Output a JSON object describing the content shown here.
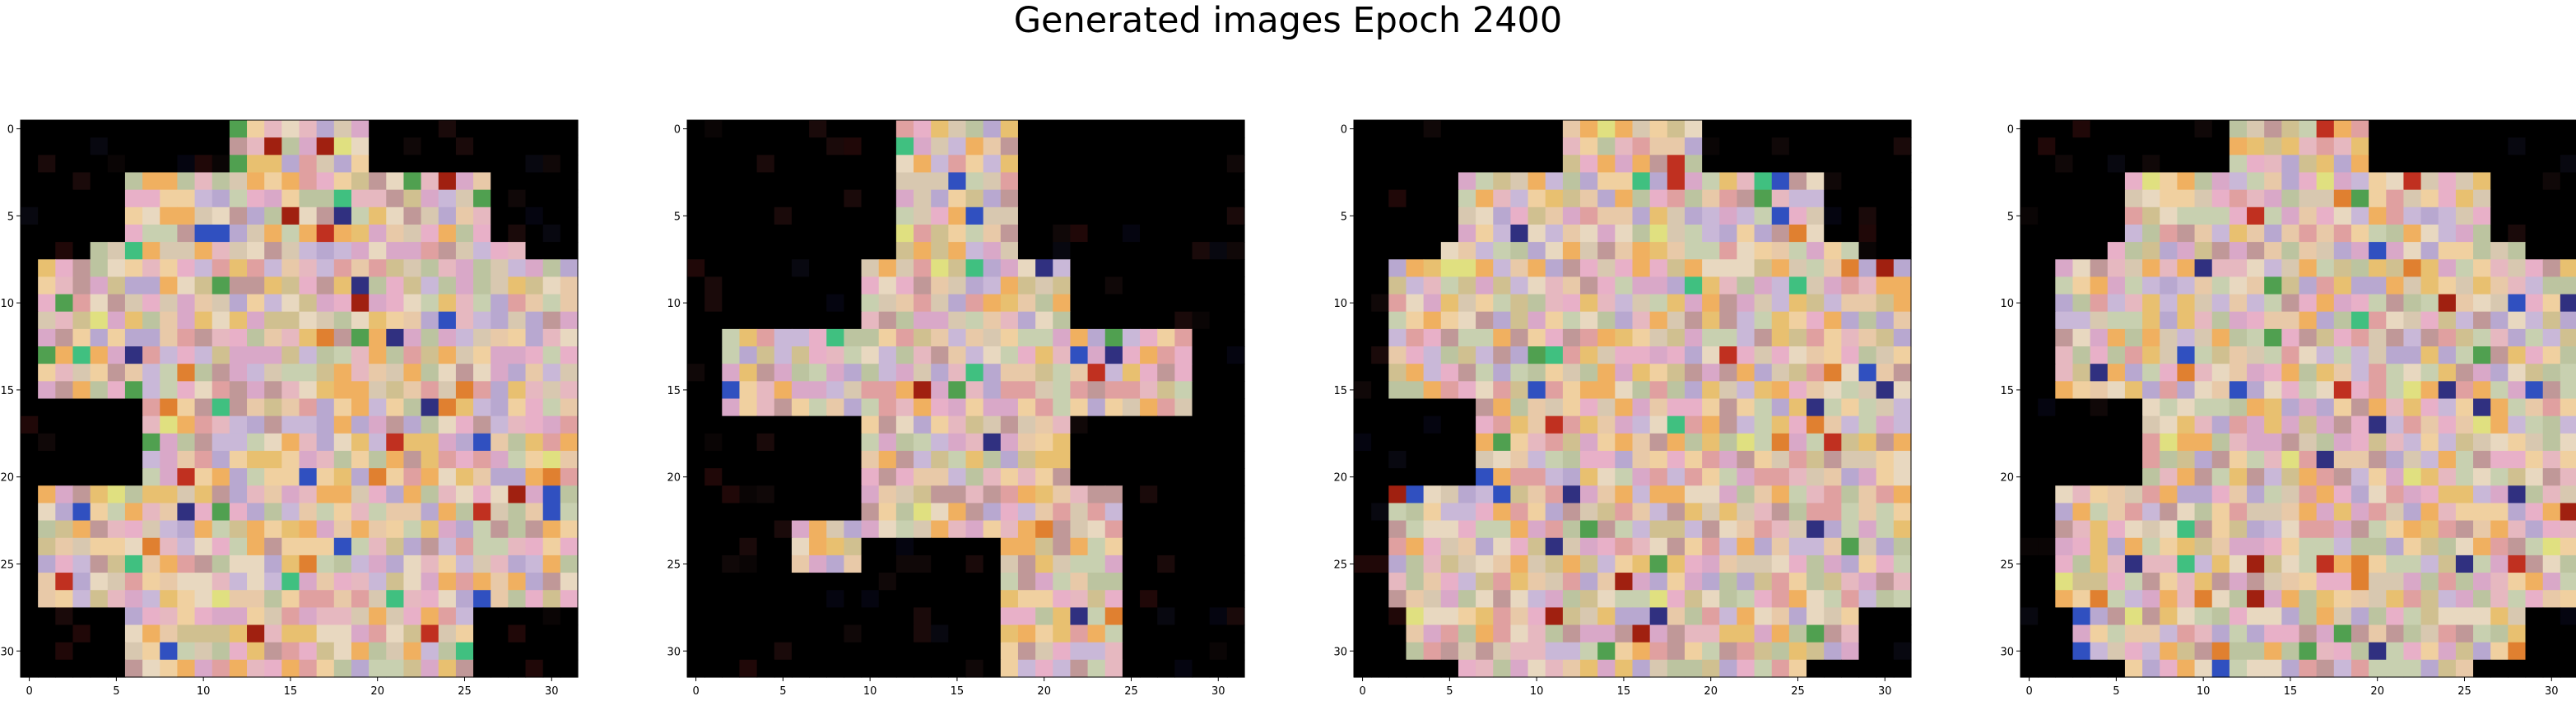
{
  "title": "Generated images Epoch 2400",
  "chart_data": [
    {
      "type": "heatmap",
      "image": "generated-sample-1",
      "grid_size": [
        32,
        32
      ],
      "xlim": [
        -0.5,
        31.5
      ],
      "ylim": [
        31.5,
        -0.5
      ],
      "xticks": [
        0,
        5,
        10,
        15,
        20,
        25,
        30
      ],
      "yticks": [
        0,
        5,
        10,
        15,
        20,
        25,
        30
      ]
    },
    {
      "type": "heatmap",
      "image": "generated-sample-2",
      "grid_size": [
        32,
        32
      ],
      "xlim": [
        -0.5,
        31.5
      ],
      "ylim": [
        31.5,
        -0.5
      ],
      "xticks": [
        0,
        5,
        10,
        15,
        20,
        25,
        30
      ],
      "yticks": [
        0,
        5,
        10,
        15,
        20,
        25,
        30
      ]
    },
    {
      "type": "heatmap",
      "image": "generated-sample-3",
      "grid_size": [
        32,
        32
      ],
      "xlim": [
        -0.5,
        31.5
      ],
      "ylim": [
        31.5,
        -0.5
      ],
      "xticks": [
        0,
        5,
        10,
        15,
        20,
        25,
        30
      ],
      "yticks": [
        0,
        5,
        10,
        15,
        20,
        25,
        30
      ]
    },
    {
      "type": "heatmap",
      "image": "generated-sample-4",
      "grid_size": [
        32,
        32
      ],
      "xlim": [
        -0.5,
        31.5
      ],
      "ylim": [
        31.5,
        -0.5
      ],
      "xticks": [
        0,
        5,
        10,
        15,
        20,
        25,
        30
      ],
      "yticks": [
        0,
        5,
        10,
        15,
        20,
        25,
        30
      ]
    }
  ]
}
